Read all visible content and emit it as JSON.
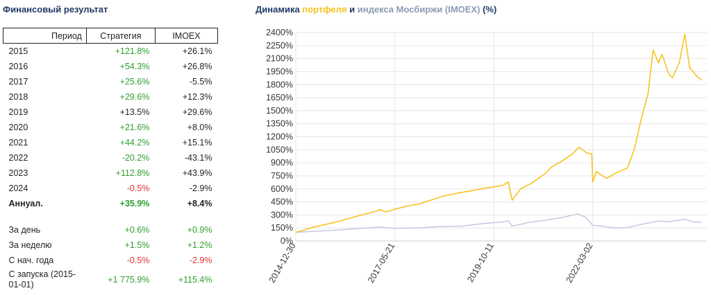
{
  "left_title": "Финансовый результат",
  "chart_title": {
    "prefix": "Динамика ",
    "portfolio": "портфеля",
    "middle": " и ",
    "index": "индекса Мосбиржи (IMOEX)",
    "suffix": " (%)"
  },
  "table": {
    "headers": {
      "period": "Период",
      "strategy": "Стратегия",
      "imoex": "IMOEX"
    },
    "rows": [
      {
        "period": "2015",
        "strategy": "+121.8%",
        "imoex": "+26.1%",
        "s_color": "pos",
        "i_color": "neu"
      },
      {
        "period": "2016",
        "strategy": "+54.3%",
        "imoex": "+26.8%",
        "s_color": "pos",
        "i_color": "neu"
      },
      {
        "period": "2017",
        "strategy": "+25.6%",
        "imoex": "-5.5%",
        "s_color": "pos",
        "i_color": "neu"
      },
      {
        "period": "2018",
        "strategy": "+29.6%",
        "imoex": "+12.3%",
        "s_color": "pos",
        "i_color": "neu"
      },
      {
        "period": "2019",
        "strategy": "+13.5%",
        "imoex": "+29.6%",
        "s_color": "neu",
        "i_color": "neu"
      },
      {
        "period": "2020",
        "strategy": "+21.6%",
        "imoex": "+8.0%",
        "s_color": "pos",
        "i_color": "neu"
      },
      {
        "period": "2021",
        "strategy": "+44.2%",
        "imoex": "+15.1%",
        "s_color": "pos",
        "i_color": "neu"
      },
      {
        "period": "2022",
        "strategy": "-20.2%",
        "imoex": "-43.1%",
        "s_color": "pos",
        "i_color": "neu"
      },
      {
        "period": "2023",
        "strategy": "+112.8%",
        "imoex": "+43.9%",
        "s_color": "pos",
        "i_color": "neu"
      },
      {
        "period": "2024",
        "strategy": "-0.5%",
        "imoex": "-2.9%",
        "s_color": "neg",
        "i_color": "neu"
      }
    ],
    "annual": {
      "period": "Аннуал.",
      "strategy": "+35.9%",
      "imoex": "+8.4%",
      "s_color": "pos",
      "i_color": "neu"
    },
    "recent": [
      {
        "period": "За день",
        "strategy": "+0.6%",
        "imoex": "+0.9%",
        "s_color": "pos",
        "i_color": "pos"
      },
      {
        "period": "За неделю",
        "strategy": "+1.5%",
        "imoex": "+1.2%",
        "s_color": "pos",
        "i_color": "pos"
      },
      {
        "period": "С нач. года",
        "strategy": "-0.5%",
        "imoex": "-2.9%",
        "s_color": "neg",
        "i_color": "neg"
      },
      {
        "period": "С запуска (2015-01-01)",
        "strategy": "+1 775.9%",
        "imoex": "+115.4%",
        "s_color": "pos",
        "i_color": "pos"
      }
    ]
  },
  "colors": {
    "portfolio": "#f7c21e",
    "index": "#c5c2de",
    "positive": "#2e9e2e",
    "negative": "#e03030",
    "title": "#1f3864",
    "grid": "#e6e6e6"
  },
  "chart_data": {
    "type": "line",
    "ylim": [
      0,
      2400
    ],
    "y_ticks": [
      0,
      150,
      300,
      450,
      600,
      750,
      900,
      1050,
      1200,
      1350,
      1500,
      1650,
      1800,
      1950,
      2100,
      2250,
      2400
    ],
    "y_tick_labels": [
      "0%",
      "150%",
      "300%",
      "450%",
      "600%",
      "750%",
      "900%",
      "1050%",
      "1200%",
      "1350%",
      "1500%",
      "1650%",
      "1800%",
      "1950%",
      "2100%",
      "2250%",
      "2400%"
    ],
    "x_range": [
      "2014-12-30",
      "2024-11-30"
    ],
    "x_ticks": [
      "2014-12-30",
      "2017-05-21",
      "2019-10-11",
      "2022-03-02"
    ],
    "grid": true,
    "series": [
      {
        "name": "портфеля",
        "color": "#f7c21e",
        "points": [
          [
            "2014-12-30",
            100
          ],
          [
            "2015-03-01",
            120
          ],
          [
            "2015-06-01",
            160
          ],
          [
            "2015-09-01",
            185
          ],
          [
            "2015-12-31",
            222
          ],
          [
            "2016-04-01",
            255
          ],
          [
            "2016-08-01",
            300
          ],
          [
            "2016-11-01",
            330
          ],
          [
            "2017-01-10",
            360
          ],
          [
            "2017-03-01",
            335
          ],
          [
            "2017-06-01",
            370
          ],
          [
            "2017-09-01",
            400
          ],
          [
            "2017-12-31",
            430
          ],
          [
            "2018-04-01",
            470
          ],
          [
            "2018-08-01",
            520
          ],
          [
            "2018-12-31",
            560
          ],
          [
            "2019-04-01",
            580
          ],
          [
            "2019-08-01",
            610
          ],
          [
            "2019-12-31",
            640
          ],
          [
            "2020-02-15",
            680
          ],
          [
            "2020-03-20",
            470
          ],
          [
            "2020-06-01",
            600
          ],
          [
            "2020-09-01",
            660
          ],
          [
            "2020-12-31",
            770
          ],
          [
            "2021-03-01",
            850
          ],
          [
            "2021-06-01",
            920
          ],
          [
            "2021-09-01",
            1000
          ],
          [
            "2021-11-01",
            1080
          ],
          [
            "2021-12-31",
            1020
          ],
          [
            "2022-02-20",
            1000
          ],
          [
            "2022-02-28",
            680
          ],
          [
            "2022-04-01",
            800
          ],
          [
            "2022-07-01",
            720
          ],
          [
            "2022-10-01",
            790
          ],
          [
            "2022-12-31",
            840
          ],
          [
            "2023-03-01",
            1050
          ],
          [
            "2023-05-01",
            1400
          ],
          [
            "2023-07-01",
            1700
          ],
          [
            "2023-08-15",
            2200
          ],
          [
            "2023-10-01",
            2050
          ],
          [
            "2023-11-01",
            2150
          ],
          [
            "2023-12-31",
            1920
          ],
          [
            "2024-02-01",
            1880
          ],
          [
            "2024-04-01",
            2050
          ],
          [
            "2024-05-20",
            2380
          ],
          [
            "2024-07-01",
            2000
          ],
          [
            "2024-09-01",
            1900
          ],
          [
            "2024-10-15",
            1850
          ]
        ]
      },
      {
        "name": "индекса Мосбиржи (IMOEX)",
        "color": "#c5c2de",
        "points": [
          [
            "2014-12-30",
            100
          ],
          [
            "2015-06-01",
            110
          ],
          [
            "2015-12-31",
            126
          ],
          [
            "2016-06-01",
            140
          ],
          [
            "2016-12-31",
            160
          ],
          [
            "2017-06-01",
            145
          ],
          [
            "2017-12-31",
            151
          ],
          [
            "2018-06-01",
            165
          ],
          [
            "2018-12-31",
            170
          ],
          [
            "2019-06-01",
            195
          ],
          [
            "2019-12-31",
            220
          ],
          [
            "2020-02-15",
            235
          ],
          [
            "2020-03-20",
            170
          ],
          [
            "2020-08-01",
            210
          ],
          [
            "2020-12-31",
            238
          ],
          [
            "2021-06-01",
            270
          ],
          [
            "2021-10-20",
            310
          ],
          [
            "2021-12-31",
            270
          ],
          [
            "2022-02-28",
            180
          ],
          [
            "2022-06-01",
            170
          ],
          [
            "2022-09-01",
            150
          ],
          [
            "2022-12-31",
            155
          ],
          [
            "2023-06-01",
            200
          ],
          [
            "2023-10-01",
            230
          ],
          [
            "2023-12-31",
            222
          ],
          [
            "2024-05-20",
            250
          ],
          [
            "2024-08-01",
            220
          ],
          [
            "2024-10-15",
            215
          ]
        ]
      }
    ]
  }
}
